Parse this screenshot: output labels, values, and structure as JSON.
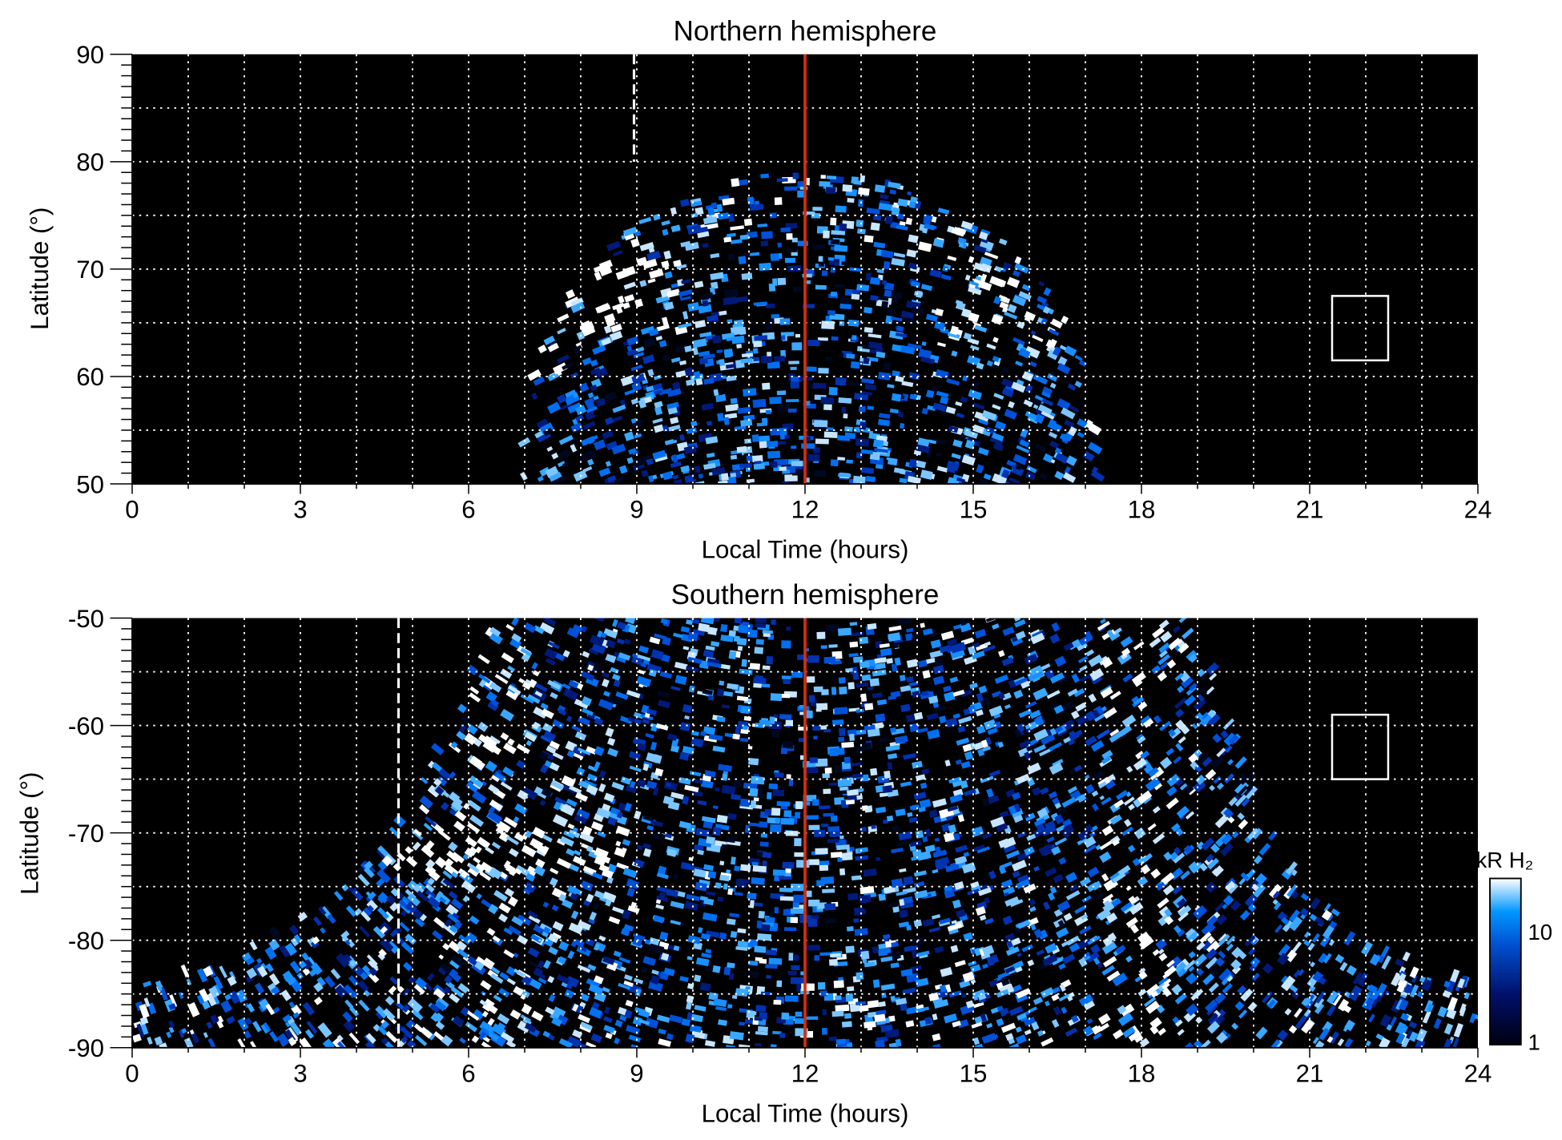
{
  "chart_data": [
    {
      "type": "heatmap",
      "title": "Northern hemisphere",
      "xlabel": "Local Time (hours)",
      "ylabel": "Latitude (°)",
      "xlim": [
        0,
        24
      ],
      "ylim": [
        50,
        90
      ],
      "xticks": [
        "0",
        "3",
        "6",
        "9",
        "12",
        "15",
        "18",
        "21",
        "24"
      ],
      "yticks": [
        "50",
        "60",
        "70",
        "80",
        "90"
      ],
      "grid": true,
      "noon_line_lt": 12,
      "dashed_line_lt": 8.95,
      "box": {
        "lt": [
          21.4,
          22.4
        ],
        "lat": [
          61.5,
          67.5
        ]
      },
      "emission_extent": "LT 7–17.3, up to ~79° near noon"
    },
    {
      "type": "heatmap",
      "title": "Southern hemisphere",
      "xlabel": "Local Time (hours)",
      "ylabel": "Latitude (°)",
      "xlim": [
        0,
        24
      ],
      "ylim": [
        -90,
        -50
      ],
      "xticks": [
        "0",
        "3",
        "6",
        "9",
        "12",
        "15",
        "18",
        "21",
        "24"
      ],
      "yticks": [
        "-90",
        "-80",
        "-70",
        "-60",
        "-50"
      ],
      "grid": true,
      "noon_line_lt": 12,
      "dashed_line_lt": 4.75,
      "box": {
        "lt": [
          21.4,
          22.4
        ],
        "lat": [
          -65,
          -59
        ]
      },
      "emission_extent": "full LT range near the pole, up to -50° for LT 6.5–19"
    }
  ],
  "colorbar": {
    "label": "kR H₂",
    "scale": "log",
    "range": [
      1,
      30
    ],
    "ticks": [
      "1",
      "10"
    ],
    "colors": [
      "#000010",
      "#00106a",
      "#0050d0",
      "#0096ff",
      "#ffffff"
    ]
  },
  "colors": {
    "noon_line": "#d03010",
    "background": "#000000",
    "grid": "#ffffff"
  }
}
